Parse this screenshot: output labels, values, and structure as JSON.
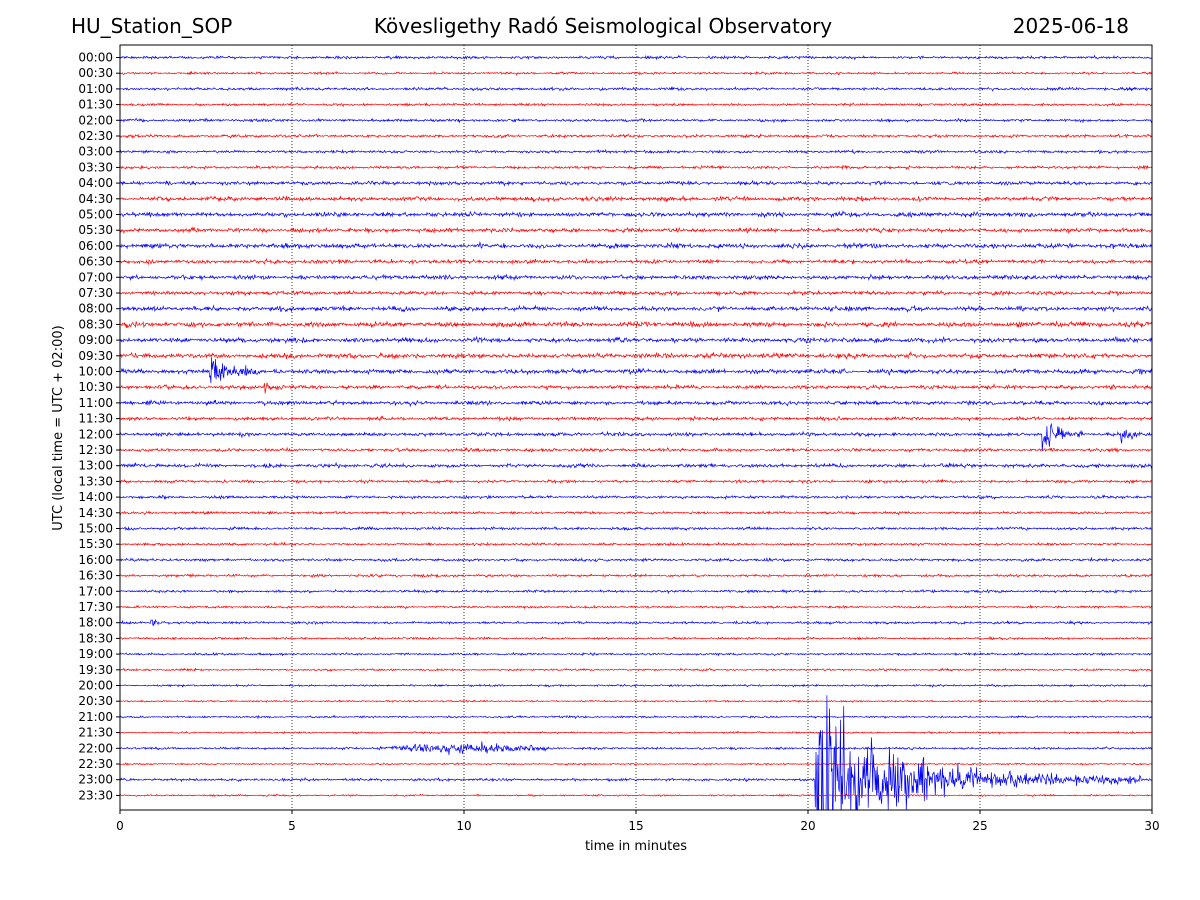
{
  "header": {
    "station": "HU_Station_SOP",
    "observatory": "Kövesligethy Radó Seismological Observatory",
    "date": "2025-06-18"
  },
  "chart_data": {
    "type": "line",
    "title": "Kövesligethy Radó Seismological Observatory",
    "xlabel": "time in minutes",
    "ylabel": "UTC (local time = UTC + 02:00)",
    "xlim": [
      0,
      30
    ],
    "x_ticks": [
      0,
      5,
      10,
      15,
      20,
      25,
      30
    ],
    "grid": {
      "x": true,
      "y": false,
      "style": "dotted"
    },
    "trace_colors": [
      "#0000ff",
      "#ff0000"
    ],
    "rows": [
      "00:00",
      "00:30",
      "01:00",
      "01:30",
      "02:00",
      "02:30",
      "03:00",
      "03:30",
      "04:00",
      "04:30",
      "05:00",
      "05:30",
      "06:00",
      "06:30",
      "07:00",
      "07:30",
      "08:00",
      "08:30",
      "09:00",
      "09:30",
      "10:00",
      "10:30",
      "11:00",
      "11:30",
      "12:00",
      "12:30",
      "13:00",
      "13:30",
      "14:00",
      "14:30",
      "15:00",
      "15:30",
      "16:00",
      "16:30",
      "17:00",
      "17:30",
      "18:00",
      "18:30",
      "19:00",
      "19:30",
      "20:00",
      "20:30",
      "21:00",
      "21:30",
      "22:00",
      "22:30",
      "23:00",
      "23:30"
    ],
    "noise_level": [
      1.0,
      0.8,
      1.0,
      0.9,
      1.0,
      1.0,
      1.0,
      1.0,
      1.3,
      1.5,
      1.6,
      1.5,
      1.7,
      1.4,
      1.5,
      1.4,
      1.6,
      1.8,
      1.6,
      1.7,
      1.6,
      1.4,
      1.4,
      1.2,
      1.3,
      1.1,
      1.3,
      1.0,
      1.0,
      0.9,
      1.0,
      0.9,
      1.0,
      0.9,
      0.9,
      0.8,
      0.9,
      0.8,
      0.8,
      0.7,
      0.7,
      0.6,
      0.7,
      0.6,
      0.8,
      0.6,
      0.9,
      0.6
    ],
    "events": [
      {
        "row": "10:00",
        "start_min": 2.6,
        "peak": 14,
        "decay_min": 0.35,
        "duration_min": 1.4
      },
      {
        "row": "10:30",
        "start_min": 4.2,
        "peak": 4,
        "decay_min": 0.2,
        "duration_min": 0.5
      },
      {
        "row": "12:00",
        "start_min": 26.8,
        "peak": 16,
        "decay_min": 0.3,
        "duration_min": 1.2
      },
      {
        "row": "12:00",
        "start_min": 29.1,
        "peak": 5,
        "decay_min": 0.25,
        "duration_min": 0.6
      },
      {
        "row": "18:00",
        "start_min": 0.9,
        "peak": 3,
        "decay_min": 0.15,
        "duration_min": 0.4
      },
      {
        "row": "22:00",
        "start_min": 7.5,
        "peak": 3,
        "decay_min": 2.5,
        "duration_min": 5.0,
        "emergent": true
      },
      {
        "row": "23:00",
        "start_min": 20.2,
        "peak": 60,
        "decay_min": 1.6,
        "duration_min": 9.5
      }
    ]
  }
}
